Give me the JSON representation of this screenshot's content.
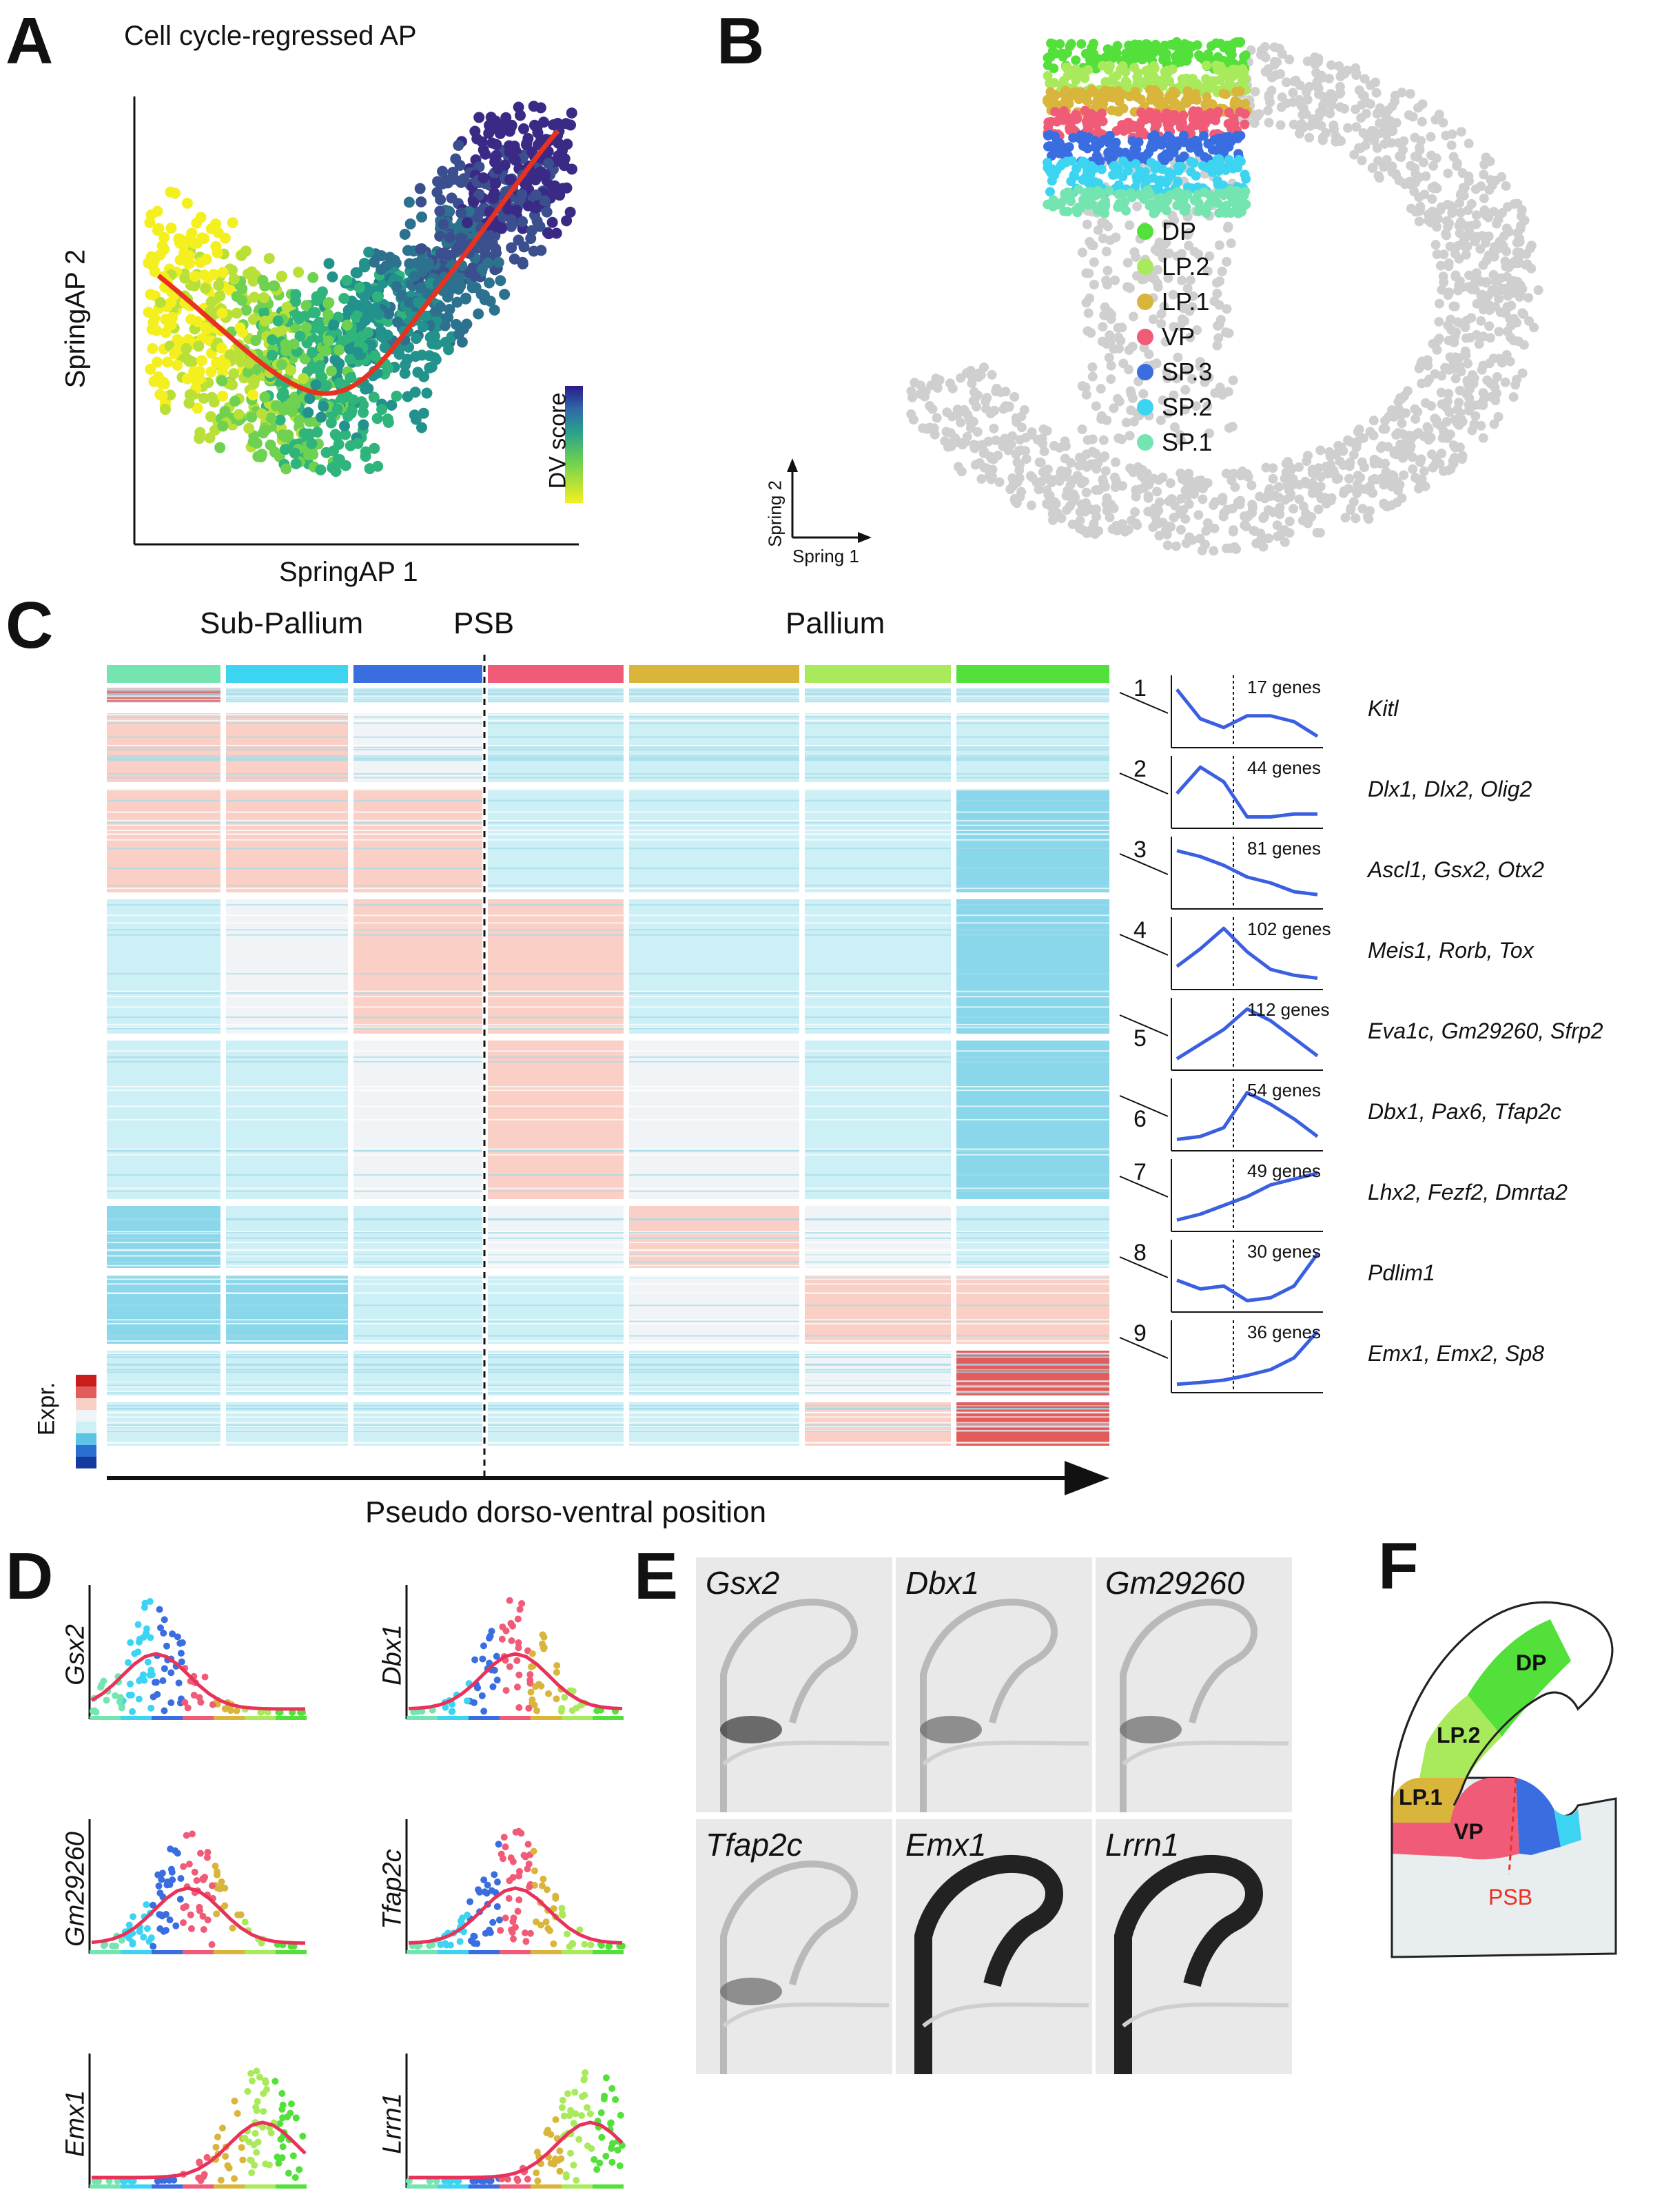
{
  "panels": {
    "A": {
      "letter": "A",
      "title": "Cell cycle-regressed AP",
      "xlabel": "SpringAP 1",
      "ylabel": "SpringAP 2",
      "colorbar_label": "DV score"
    },
    "B": {
      "letter": "B",
      "axis_x": "Spring 1",
      "axis_y": "Spring 2",
      "legend": [
        {
          "label": "DP",
          "color": "#53e03a"
        },
        {
          "label": "LP.2",
          "color": "#a9ea5c"
        },
        {
          "label": "LP.1",
          "color": "#d9b53c"
        },
        {
          "label": "VP",
          "color": "#f05c78"
        },
        {
          "label": "SP.3",
          "color": "#3a6de0"
        },
        {
          "label": "SP.2",
          "color": "#3dd4f2"
        },
        {
          "label": "SP.1",
          "color": "#74e4b0"
        }
      ]
    },
    "C": {
      "letter": "C",
      "left_label": "Sub-Pallium",
      "mid_label": "PSB",
      "right_label": "Pallium",
      "axis_label": "Pseudo dorso-ventral position",
      "colorbar_label": "Expr.",
      "clusters": [
        {
          "num": "1",
          "genes": "17 genes",
          "markers": "Kitl"
        },
        {
          "num": "2",
          "genes": "44 genes",
          "markers": "Dlx1, Dlx2, Olig2"
        },
        {
          "num": "3",
          "genes": "81 genes",
          "markers": "Ascl1, Gsx2, Otx2"
        },
        {
          "num": "4",
          "genes": "102 genes",
          "markers": "Meis1, Rorb, Tox"
        },
        {
          "num": "5",
          "genes": "112 genes",
          "markers": "Eva1c, Gm29260, Sfrp2"
        },
        {
          "num": "6",
          "genes": "54 genes",
          "markers": "Dbx1, Pax6, Tfap2c"
        },
        {
          "num": "7",
          "genes": "49 genes",
          "markers": "Lhx2, Fezf2, Dmrta2"
        },
        {
          "num": "8",
          "genes": "30 genes",
          "markers": "Pdlim1"
        },
        {
          "num": "9",
          "genes": "36 genes",
          "markers": "Emx1, Emx2, Sp8"
        }
      ]
    },
    "D": {
      "letter": "D",
      "genes": [
        "Gsx2",
        "Dbx1",
        "Gm29260",
        "Tfap2c",
        "Emx1",
        "Lrrn1"
      ]
    },
    "E": {
      "letter": "E",
      "genes": [
        "Gsx2",
        "Dbx1",
        "Gm29260",
        "Tfap2c",
        "Emx1",
        "Lrrn1"
      ]
    },
    "F": {
      "letter": "F",
      "regions": [
        "DP",
        "LP.2",
        "LP.1",
        "VP"
      ],
      "boundary": "PSB"
    }
  }
}
